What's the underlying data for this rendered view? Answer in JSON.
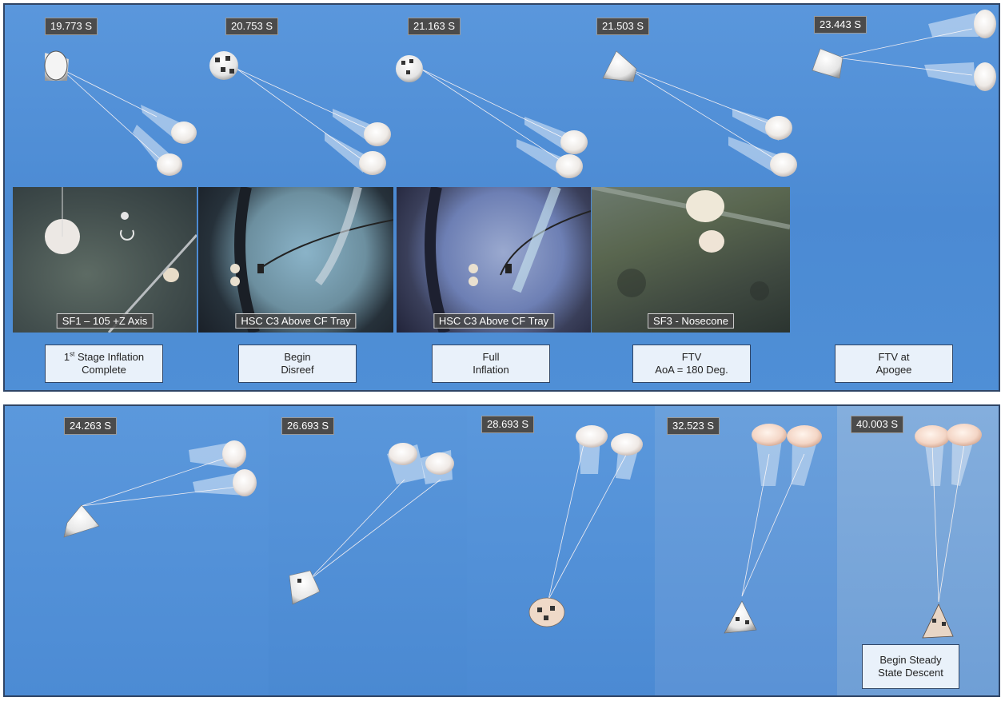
{
  "top": {
    "timestamps": [
      "19.773 S",
      "20.753 S",
      "21.163 S",
      "21.503 S",
      "23.443 S"
    ],
    "camera_labels": [
      "SF1 – 105 +Z Axis",
      "HSC C3 Above CF Tray",
      "HSC C3 Above CF Tray",
      "SF3 - Nosecone"
    ],
    "notes": [
      {
        "line1_sup": "st",
        "line1_pre": "1",
        "line1_post": " Stage Inflation",
        "line2": "Complete"
      },
      {
        "line1": "Begin",
        "line2": "Disreef"
      },
      {
        "line1": "Full",
        "line2": "Inflation"
      },
      {
        "line1": "FTV",
        "line2": "AoA = 180 Deg."
      },
      {
        "line1": "FTV at",
        "line2": "Apogee"
      }
    ]
  },
  "bottom": {
    "timestamps": [
      "24.263 S",
      "26.693 S",
      "28.693 S",
      "32.523 S",
      "40.003 S"
    ],
    "notes": [
      {
        "line1": "Begin Steady",
        "line2": "State Descent"
      }
    ]
  },
  "colors": {
    "sky": "#4f8ed6",
    "border": "#2f4566",
    "timestamp_bg": "#4b4b4b",
    "note_bg": "#e9f1fa"
  }
}
